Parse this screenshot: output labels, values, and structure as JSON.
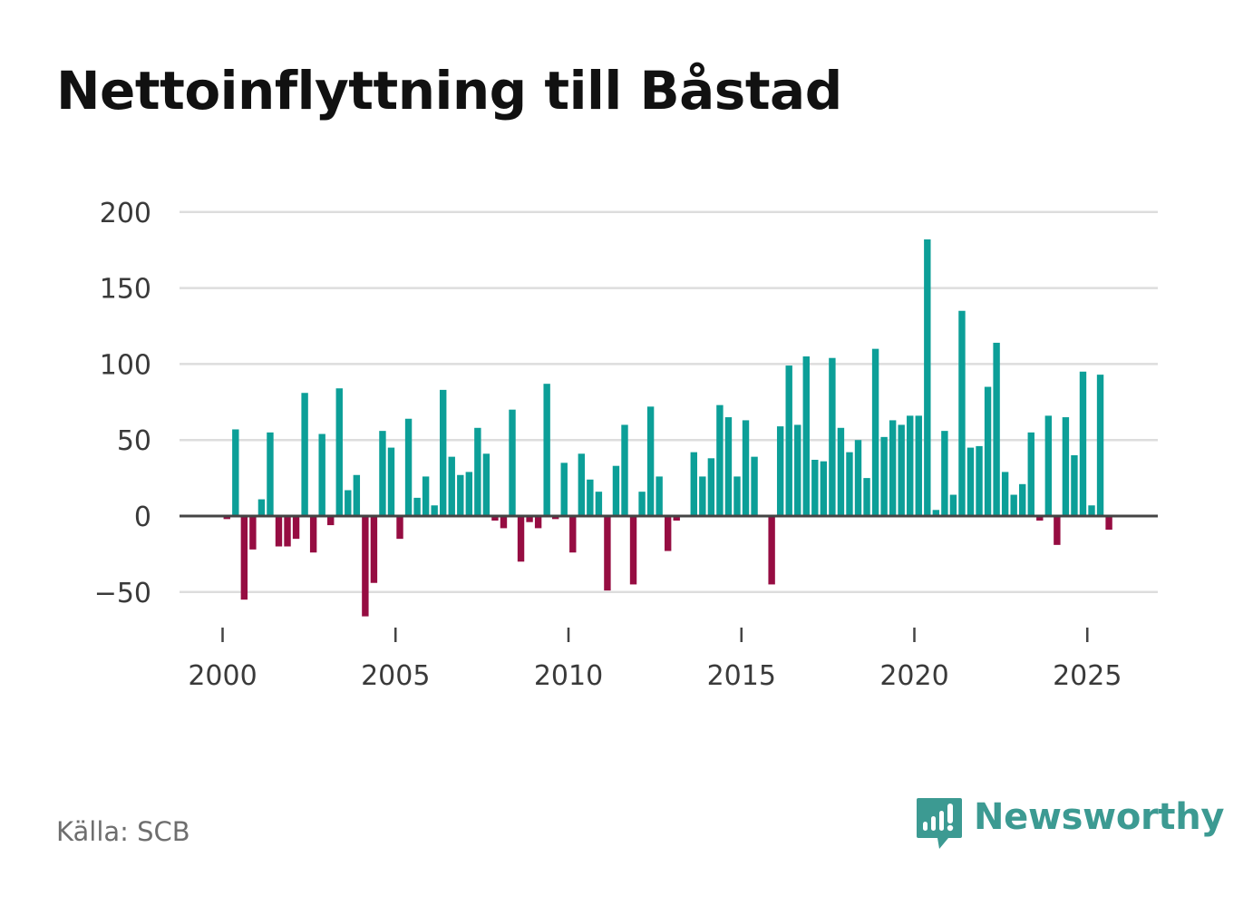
{
  "title": "Nettoinflyttning till Båstad",
  "source": "Källa: SCB",
  "brand": "Newsworthy",
  "colors": {
    "positive": "#0c9f98",
    "negative": "#960d42",
    "grid": "#dddddd",
    "zero_line": "#444444",
    "brand": "#3c9a92"
  },
  "chart_data": {
    "type": "bar",
    "title": "Nettoinflyttning till Båstad",
    "xlabel": "",
    "ylabel": "",
    "ylim": [
      -70,
      205
    ],
    "yticks": [
      -50,
      0,
      50,
      100,
      150,
      200
    ],
    "ytick_labels": [
      "−50",
      "0",
      "50",
      "100",
      "150",
      "200"
    ],
    "xlim": [
      1999.0,
      2027.2
    ],
    "xticks": [
      2000,
      2005,
      2010,
      2015,
      2020,
      2025
    ],
    "xtick_labels": [
      "2000",
      "2005",
      "2010",
      "2015",
      "2020",
      "2025"
    ],
    "grid": true,
    "frequency": "quarterly",
    "start": "2000-Q1",
    "values": [
      -2,
      57,
      -55,
      -22,
      11,
      55,
      -20,
      -20,
      -15,
      81,
      -24,
      54,
      -6,
      84,
      17,
      27,
      -66,
      -44,
      56,
      45,
      -15,
      64,
      12,
      26,
      7,
      83,
      39,
      27,
      29,
      58,
      41,
      -3,
      -8,
      70,
      -30,
      -4,
      -8,
      87,
      -2,
      35,
      -24,
      41,
      24,
      16,
      -49,
      33,
      60,
      -45,
      16,
      72,
      26,
      -23,
      -3,
      0,
      42,
      26,
      38,
      73,
      65,
      26,
      63,
      39,
      0,
      -45,
      59,
      99,
      60,
      105,
      37,
      36,
      104,
      58,
      42,
      50,
      25,
      110,
      52,
      63,
      60,
      66,
      66,
      182,
      4,
      56,
      14,
      135,
      45,
      46,
      85,
      114,
      29,
      14,
      21,
      55,
      -3,
      66,
      -19,
      65,
      40,
      95,
      7,
      93,
      -9
    ]
  }
}
